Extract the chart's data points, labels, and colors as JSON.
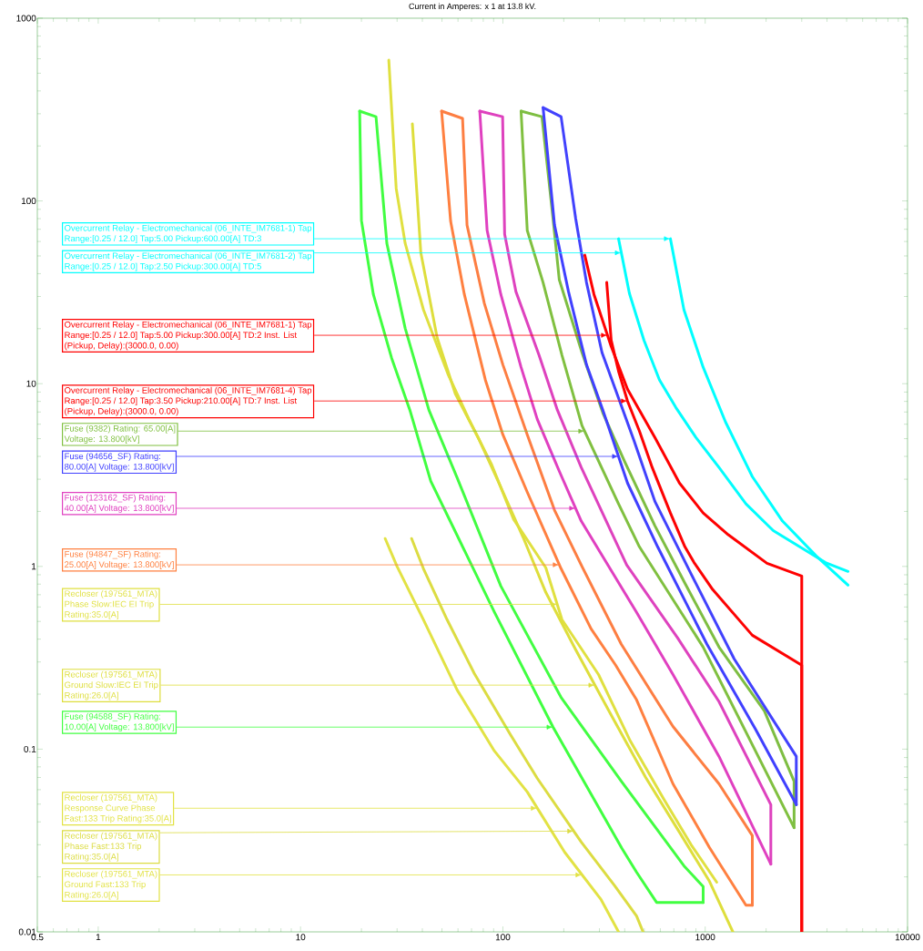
{
  "chart_data": {
    "type": "line",
    "title": "Current in Amperes: x 1 at 13.8 kV.",
    "log": "xy",
    "xlim": [
      0.5,
      10000
    ],
    "ylim": [
      0.01,
      1000
    ],
    "xticks": [
      0.5,
      1,
      10,
      100,
      1000,
      10000
    ],
    "yticks": [
      0.01,
      0.1,
      1,
      10,
      100,
      1000
    ],
    "series": [
      {
        "color": "#40ff40",
        "x": [
          19.6,
          20,
          22.9,
          28.2,
          34.7,
          44,
          91,
          177,
          388,
          458,
          575,
          977
        ],
        "values": [
          310,
          78.1,
          30.8,
          13.8,
          7.17,
          2.93,
          0.56,
          0.132,
          0.0286,
          0.0212,
          0.0145,
          0.0145
        ]
      },
      {
        "color": "#42fd42",
        "x": [
          19.6,
          23.6,
          26.7,
          32.9,
          43.1,
          59.4,
          97.7,
          194,
          385,
          785,
          977,
          977
        ],
        "values": [
          310,
          289,
          58.6,
          20.1,
          7.17,
          3.06,
          0.781,
          0.192,
          0.0668,
          0.023,
          0.0177,
          0.0145
        ]
      },
      {
        "color": "#e0e040",
        "x": [
          27.3,
          29.7,
          32.9,
          40.5,
          53.5,
          68,
          88.1,
          113,
          163,
          196,
          297,
          426,
          625,
          853,
          1140
        ],
        "values": [
          590,
          117,
          58.6,
          25.4,
          11.3,
          6.38,
          3.6,
          1.81,
          0.983,
          0.511,
          0.256,
          0.111,
          0.0532,
          0.0299,
          0.0187
        ]
      },
      {
        "color": "#dede3c",
        "x": [
          35.7,
          39.3,
          47.3,
          58.2,
          75.4,
          95.7,
          126,
          163,
          229,
          347,
          508,
          746,
          1050,
          1370
        ],
        "values": [
          264,
          52.2,
          17.9,
          8.81,
          5.08,
          2.86,
          1.44,
          0.721,
          0.35,
          0.15,
          0.07,
          0.0351,
          0.0189,
          0.01
        ]
      },
      {
        "color": "#e2e244",
        "x": [
          26.2,
          30,
          40.5,
          59.4,
          90.8,
          132,
          202,
          306,
          373
        ],
        "values": [
          1.42,
          1.0,
          0.511,
          0.211,
          0.0977,
          0.0583,
          0.0273,
          0.015,
          0.01
        ]
      },
      {
        "color": "#dcdc42",
        "x": [
          35.4,
          40.5,
          53,
          72.3,
          109,
          148,
          244,
          357,
          458,
          493
        ],
        "values": [
          1.42,
          0.972,
          0.511,
          0.259,
          0.12,
          0.0692,
          0.031,
          0.0179,
          0.0122,
          0.01
        ]
      },
      {
        "color": "#ff8040",
        "x": [
          49.8,
          55.2,
          64.5,
          81.9,
          100,
          132,
          194,
          273,
          361,
          458,
          693,
          1050,
          1590,
          1710
        ],
        "values": [
          310,
          77.3,
          30.8,
          10.5,
          5.26,
          2.55,
          0.972,
          0.455,
          0.288,
          0.186,
          0.0646,
          0.0289,
          0.014,
          0.014
        ]
      },
      {
        "color": "#fd7e42",
        "x": [
          49.8,
          63.2,
          66.5,
          81,
          100,
          132,
          180,
          246,
          385,
          693,
          1170,
          1710,
          1710
        ],
        "values": [
          310,
          283,
          73.8,
          27.5,
          12.7,
          5.26,
          2.03,
          1.0,
          0.375,
          0.133,
          0.0646,
          0.0336,
          0.014
        ]
      },
      {
        "color": "#e040c0",
        "x": [
          76.9,
          83.6,
          97.7,
          123,
          148,
          190,
          244,
          458,
          693,
          1170,
          2110
        ],
        "values": [
          310,
          68.9,
          30.8,
          12.3,
          6.38,
          3.32,
          1.77,
          0.56,
          0.256,
          0.0912,
          0.0235
        ]
      },
      {
        "color": "#de42be",
        "x": [
          76.9,
          99.7,
          102,
          116,
          151,
          186,
          244,
          409,
          731,
          1170,
          2110,
          2110
        ],
        "values": [
          310,
          289,
          65.8,
          31.9,
          14.3,
          7.17,
          3.48,
          1.02,
          0.406,
          0.182,
          0.0497,
          0.0235
        ]
      },
      {
        "color": "#80c040",
        "x": [
          123,
          132,
          158,
          196,
          246,
          373,
          473,
          977,
          1770,
          2750
        ],
        "values": [
          310,
          68.9,
          35.8,
          14.3,
          5.9,
          2.2,
          1.28,
          0.362,
          null,
          0.0372
        ]
      },
      {
        "color": "#7ebe42",
        "x": [
          123,
          156,
          177,
          190,
          246,
          312,
          401,
          564,
          794,
          1170,
          1960,
          2750,
          2750
        ],
        "values": [
          310,
          289,
          80,
          37.1,
          14.8,
          6.92,
          3.72,
          1.67,
          0.809,
          0.362,
          0.162,
          0.0668,
          0.0372
        ]
      },
      {
        "color": "#4040ff",
        "x": [
          158,
          180,
          211,
          259,
          312,
          413,
          582,
          1020,
          1770,
          2820
        ],
        "values": [
          324,
          73.8,
          31.9,
          12.7,
          7.17,
          2.86,
          1.28,
          0.375,
          0.129,
          0.0497
        ]
      },
      {
        "color": "#4242fd",
        "x": [
          158,
          194,
          229,
          259,
          309,
          444,
          564,
          853,
          1390,
          2820,
          2820
        ],
        "values": [
          324,
          289,
          80,
          35.8,
          14.8,
          4.91,
          2.27,
          0.907,
          0.312,
          0.0912,
          0.0497
        ]
      },
      {
        "color": "#ff0000",
        "x": [
          254,
          282,
          343,
          413,
          564,
          746,
          977,
          1300,
          2020,
          3000,
          3000
        ],
        "values": [
          50.5,
          30.8,
          16,
          9.33,
          5.08,
          2.86,
          1.96,
          1.49,
          1.04,
          0.886,
          0.01
        ]
      },
      {
        "color": "#fd0202",
        "x": [
          326,
          343,
          373,
          413,
          473,
          547,
          673,
          794,
          881,
          1090,
          1710,
          3000,
          3000
        ],
        "values": [
          35.8,
          17.3,
          11.7,
          8.04,
          5.5,
          3.48,
          1.96,
          1.28,
          1.05,
          0.746,
          0.42,
          0.288,
          0.01
        ]
      },
      {
        "color": "#00ffff",
        "x": [
          673,
          785,
          977,
          1260,
          1710,
          2410,
          3540,
          5080
        ],
        "values": [
          62.1,
          25.4,
          12.3,
          6.17,
          3.1,
          1.77,
          1.14,
          0.79
        ]
      },
      {
        "color": "#02fdfd",
        "x": [
          373,
          422,
          498,
          594,
          716,
          899,
          1170,
          1590,
          2170,
          3930,
          5080
        ],
        "values": [
          62.1,
          31.2,
          17.3,
          10.5,
          7.41,
          5.08,
          3.48,
          2.2,
          1.57,
          1.05,
          0.939
        ]
      }
    ],
    "annotations": [
      {
        "text": "Overcurrent Relay - Electromechanical (06_INTE_IM7681-1) Tap Range:[0.25 / 12.0] Tap:5.00 Pickup:600.00[A] TD:3",
        "x": 673,
        "y": 62.1
      },
      {
        "text": "Overcurrent Relay - Electromechanical (06_INTE_IM7681-2) Tap Range:[0.25 / 12.0] Tap:2.50 Pickup:300.00[A] TD:5",
        "x": 385,
        "y": 52
      },
      {
        "text": "Overcurrent Relay - Electromechanical (06_INTE_IM7681-1) Tap Range:[0.25 / 12.0] Tap:5.00 Pickup:300.00[A] TD:2 Inst. List (Pickup, Delay):(3000.0, 0.00)",
        "x": 329,
        "y": 18.4
      },
      {
        "text": "Overcurrent Relay - Electromechanical (06_INTE_IM7681-4) Tap Range:[0.25 / 12.0] Tap:3.50 Pickup:210.00[A] TD:7 Inst. List (Pickup, Delay):(3000.0, 0.00)",
        "x": 413,
        "y": 8.04
      },
      {
        "text": "Fuse (9382) Rating: 65.00[A] Voltage: 13.800[kV]",
        "x": 254,
        "y": 5.5
      },
      {
        "text": "Fuse (94656_SF) Rating: 80.00[A] Voltage: 13.800[kV]",
        "x": 373,
        "y": 4.0
      },
      {
        "text": "Fuse (123162_SF) Rating: 40.00[A] Voltage: 13.800[kV]",
        "x": 229,
        "y": 2.08
      },
      {
        "text": "Fuse (94847_SF) Rating: 25.00[A] Voltage: 13.800[kV]",
        "x": 190,
        "y": 1.02
      },
      {
        "text": "Recloser (197561_MTA) Phase Slow:IEC EI Trip Rating:35.0[A]",
        "x": 186,
        "y": 0.62
      },
      {
        "text": "Recloser (197561_MTA) Ground Slow:IEC EI Trip Rating:26.0[A]",
        "x": 285,
        "y": 0.224
      },
      {
        "text": "Fuse (94588_SF) Rating: 10.00[A] Voltage: 13.800[kV]",
        "x": 177,
        "y": 0.132
      },
      {
        "text": "Recloser (197561_MTA) Response Curve Phase Fast:133 Trip Rating:35.0[A]",
        "x": 148,
        "y": 0.0475
      },
      {
        "text": "Recloser (197561_MTA) Phase Fast:133 Trip Rating:35.0[A]",
        "x": 224,
        "y": 0.0356
      },
      {
        "text": "Recloser (197561_MTA) Ground Fast:133 Trip Rating:26.0[A]",
        "x": 246,
        "y": 0.0205
      }
    ]
  }
}
